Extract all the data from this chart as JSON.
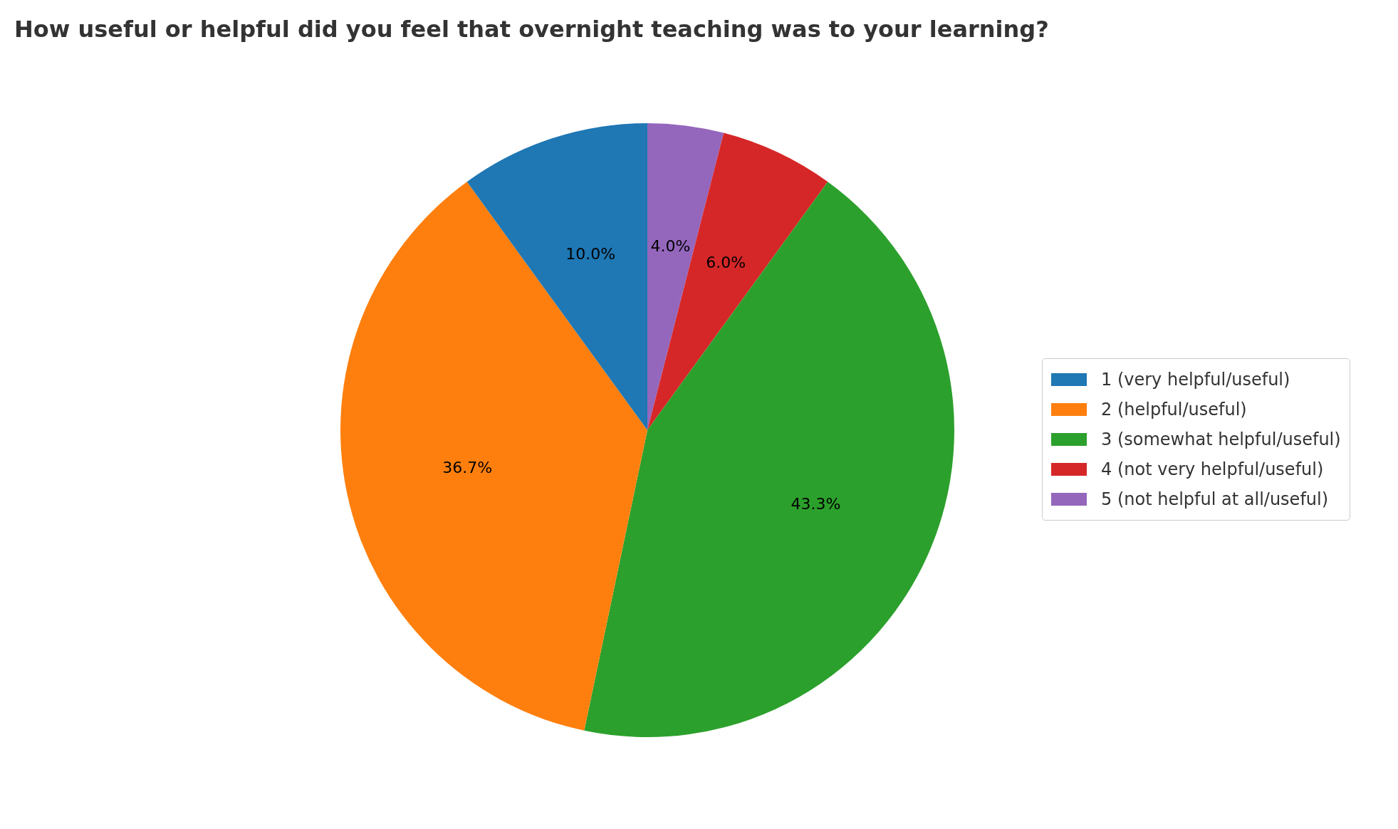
{
  "chart_data": {
    "type": "pie",
    "title": "How useful or helpful did you feel that overnight teaching was to your learning?",
    "categories": [
      "1 (very helpful/useful)",
      "2 (helpful/useful)",
      "3 (somewhat helpful/useful)",
      "4 (not very helpful/useful)",
      "5 (not helpful at all/useful)"
    ],
    "values": [
      10.0,
      36.7,
      43.3,
      6.0,
      4.0
    ],
    "value_labels": [
      "10.0%",
      "36.7%",
      "43.3%",
      "6.0%",
      "4.0%"
    ],
    "colors": [
      "#1f77b4",
      "#ff7f0e",
      "#2ca02c",
      "#d62728",
      "#9467bd"
    ],
    "legend": "right"
  }
}
